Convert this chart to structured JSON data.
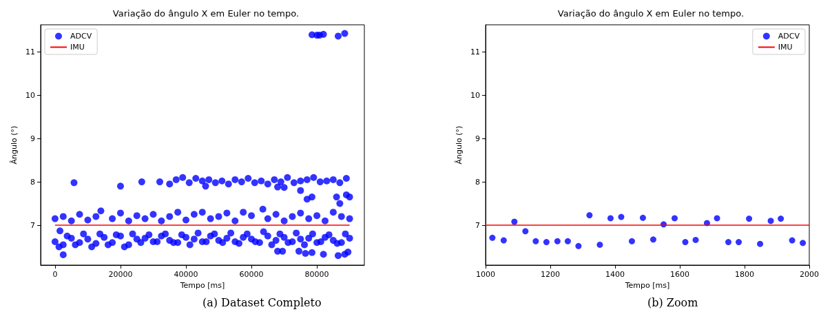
{
  "chart_data": [
    {
      "type": "scatter",
      "title": "Variação do ângulo X em Euler no tempo.",
      "xlabel": "Tempo [ms]",
      "ylabel": "Ângulo (°)",
      "annotations": [
        "(a) Dataset Completo"
      ],
      "xlim": [
        -4400,
        94500
      ],
      "xticks": [
        0,
        20000,
        40000,
        60000,
        80000
      ],
      "ylim": [
        6.08,
        11.62
      ],
      "yticks": [
        7,
        8,
        9,
        10,
        11
      ],
      "grid": false,
      "legend": "top left",
      "series": [
        {
          "name": "ADCV",
          "marker": "circle",
          "color": "#0000ff",
          "x": [
            0,
            2500,
            5000,
            7500,
            10000,
            12500,
            15000,
            17500,
            20000,
            22500,
            25000,
            27500,
            30000,
            32500,
            35000,
            37500,
            40000,
            42500,
            45000,
            47500,
            50000,
            52500,
            55000,
            57500,
            60000,
            62500,
            65000,
            67500,
            70000,
            72500,
            75000,
            77500,
            80000,
            82500,
            85000,
            87500,
            90000,
            1200,
            3700,
            6200,
            8700,
            11200,
            13700,
            16200,
            18700,
            21200,
            23700,
            26200,
            28700,
            31200,
            33700,
            36200,
            38700,
            41200,
            43700,
            46200,
            48700,
            51200,
            53700,
            56200,
            58700,
            61200,
            63700,
            66200,
            68700,
            71200,
            73700,
            76200,
            78700,
            81200,
            83700,
            86200,
            88700,
            0,
            2500,
            5000,
            7500,
            10000,
            12500,
            14000,
            17500,
            20000,
            22500,
            25000,
            27500,
            30000,
            32500,
            35000,
            37500,
            40000,
            42500,
            45000,
            47500,
            50000,
            52500,
            55000,
            57500,
            60000,
            63500,
            65000,
            67500,
            70000,
            72500,
            75000,
            77500,
            80000,
            82500,
            85000,
            87500,
            90000,
            37000,
            39000,
            41000,
            43000,
            45000,
            47000,
            49000,
            51000,
            53000,
            55000,
            57000,
            59000,
            61000,
            63000,
            65000,
            67000,
            69000,
            71000,
            73000,
            75000,
            77000,
            79000,
            81000,
            83000,
            85000,
            87000,
            89000,
            46000,
            68000,
            70000,
            5800,
            20000,
            26500,
            32000,
            35000,
            78500,
            80000,
            80800,
            82000,
            86500,
            88500,
            2500,
            68000,
            69500,
            74500,
            76500,
            78500,
            82000,
            86500,
            88500,
            89500,
            1500,
            75000,
            77000,
            78500,
            86000,
            87000,
            89000,
            90000
          ],
          "values": [
            6.62,
            6.55,
            6.7,
            6.6,
            6.68,
            6.58,
            6.72,
            6.6,
            6.75,
            6.55,
            6.68,
            6.7,
            6.62,
            6.75,
            6.65,
            6.6,
            6.72,
            6.68,
            6.62,
            6.75,
            6.65,
            6.7,
            6.62,
            6.72,
            6.68,
            6.6,
            6.75,
            6.65,
            6.72,
            6.62,
            6.68,
            6.7,
            6.6,
            6.72,
            6.65,
            6.6,
            6.7,
            6.5,
            6.75,
            6.55,
            6.8,
            6.5,
            6.8,
            6.55,
            6.78,
            6.5,
            6.8,
            6.6,
            6.78,
            6.62,
            6.8,
            6.6,
            6.78,
            6.55,
            6.82,
            6.62,
            6.8,
            6.6,
            6.82,
            6.58,
            6.8,
            6.62,
            6.85,
            6.55,
            6.8,
            6.6,
            6.82,
            6.55,
            6.8,
            6.62,
            6.78,
            6.58,
            6.8,
            7.15,
            7.2,
            7.1,
            7.25,
            7.12,
            7.2,
            7.33,
            7.15,
            7.28,
            7.1,
            7.22,
            7.15,
            7.25,
            7.1,
            7.2,
            7.3,
            7.12,
            7.25,
            7.3,
            7.15,
            7.2,
            7.28,
            7.1,
            7.3,
            7.22,
            7.37,
            7.15,
            7.25,
            7.1,
            7.2,
            7.28,
            7.15,
            7.22,
            7.1,
            7.3,
            7.2,
            7.15,
            8.05,
            8.1,
            7.98,
            8.08,
            8.02,
            8.05,
            7.98,
            8.02,
            7.95,
            8.05,
            8.0,
            8.08,
            7.98,
            8.02,
            7.95,
            8.05,
            8.0,
            8.1,
            7.98,
            8.02,
            8.05,
            8.1,
            8.0,
            8.02,
            8.05,
            7.98,
            8.08,
            7.9,
            7.88,
            7.87,
            7.98,
            7.9,
            8.0,
            8.0,
            7.95,
            11.39,
            11.38,
            11.38,
            11.4,
            11.36,
            11.42,
            6.32,
            6.4,
            6.4,
            6.4,
            6.35,
            6.37,
            6.33,
            6.3,
            6.33,
            6.38,
            6.87,
            7.8,
            7.6,
            7.65,
            7.65,
            7.5,
            7.7,
            7.65
          ]
        },
        {
          "name": "IMU",
          "type": "line",
          "marker": "none",
          "color": "#ff0000",
          "x": [
            0,
            90000
          ],
          "values": [
            7,
            7
          ]
        }
      ]
    },
    {
      "type": "scatter",
      "title": "Variação do ângulo X em Euler no tempo.",
      "xlabel": "Tempo [ms]",
      "ylabel": "Ângulo (°)",
      "annotations": [
        "(b) Zoom"
      ],
      "xlim": [
        1000,
        2000
      ],
      "xticks": [
        1000,
        1200,
        1400,
        1600,
        1800,
        2000
      ],
      "ylim": [
        6.08,
        11.62
      ],
      "yticks": [
        7,
        8,
        9,
        10,
        11
      ],
      "grid": false,
      "legend": "top right",
      "series": [
        {
          "name": "ADCV",
          "marker": "circle",
          "color": "#0000ff",
          "x": [
            1021,
            1056,
            1089,
            1123,
            1155,
            1188,
            1222,
            1254,
            1287,
            1321,
            1353,
            1386,
            1419,
            1452,
            1486,
            1518,
            1550,
            1584,
            1617,
            1649,
            1684,
            1715,
            1750,
            1782,
            1814,
            1848,
            1881,
            1912,
            1947,
            1980
          ],
          "values": [
            6.71,
            6.65,
            7.08,
            6.86,
            6.63,
            6.61,
            6.63,
            6.63,
            6.52,
            7.23,
            6.55,
            7.16,
            7.19,
            6.63,
            7.17,
            6.67,
            7.02,
            7.16,
            6.61,
            6.66,
            7.05,
            7.16,
            6.61,
            6.61,
            7.15,
            6.57,
            7.1,
            7.15,
            6.65,
            6.59
          ]
        },
        {
          "name": "IMU",
          "type": "line",
          "marker": "none",
          "color": "#ff0000",
          "x": [
            1000,
            2000
          ],
          "values": [
            7,
            7
          ]
        }
      ]
    }
  ]
}
